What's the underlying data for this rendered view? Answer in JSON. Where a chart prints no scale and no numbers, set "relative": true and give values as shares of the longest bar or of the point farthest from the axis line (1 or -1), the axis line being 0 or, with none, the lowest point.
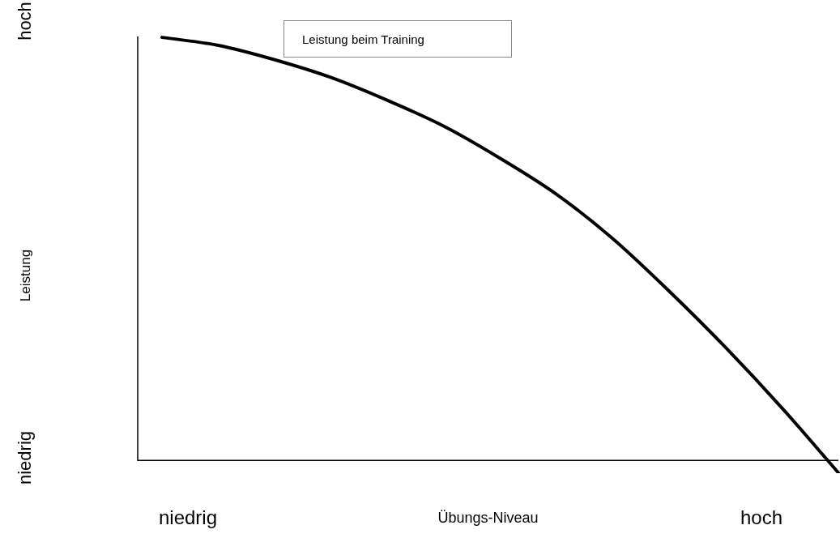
{
  "chart_data": {
    "type": "line",
    "relative": true,
    "xlabel": "Übungs-Niveau",
    "legend": "top",
    "grid": false,
    "marker": "none",
    "categories": [
      null,
      null,
      null,
      null,
      null,
      null,
      null,
      null,
      null,
      null,
      null,
      null,
      null
    ],
    "annotations": [
      "niedrig",
      "hoch",
      "niedrig",
      "hoch",
      "Leistung"
    ],
    "series": [
      {
        "name": "Leistung beim Training",
        "color": "#000000",
        "values": [
          1.0,
          0.981,
          0.947,
          0.905,
          0.851,
          0.79,
          0.714,
          0.629,
          0.524,
          0.4,
          0.267,
          0.124,
          -0.029
        ]
      }
    ]
  }
}
